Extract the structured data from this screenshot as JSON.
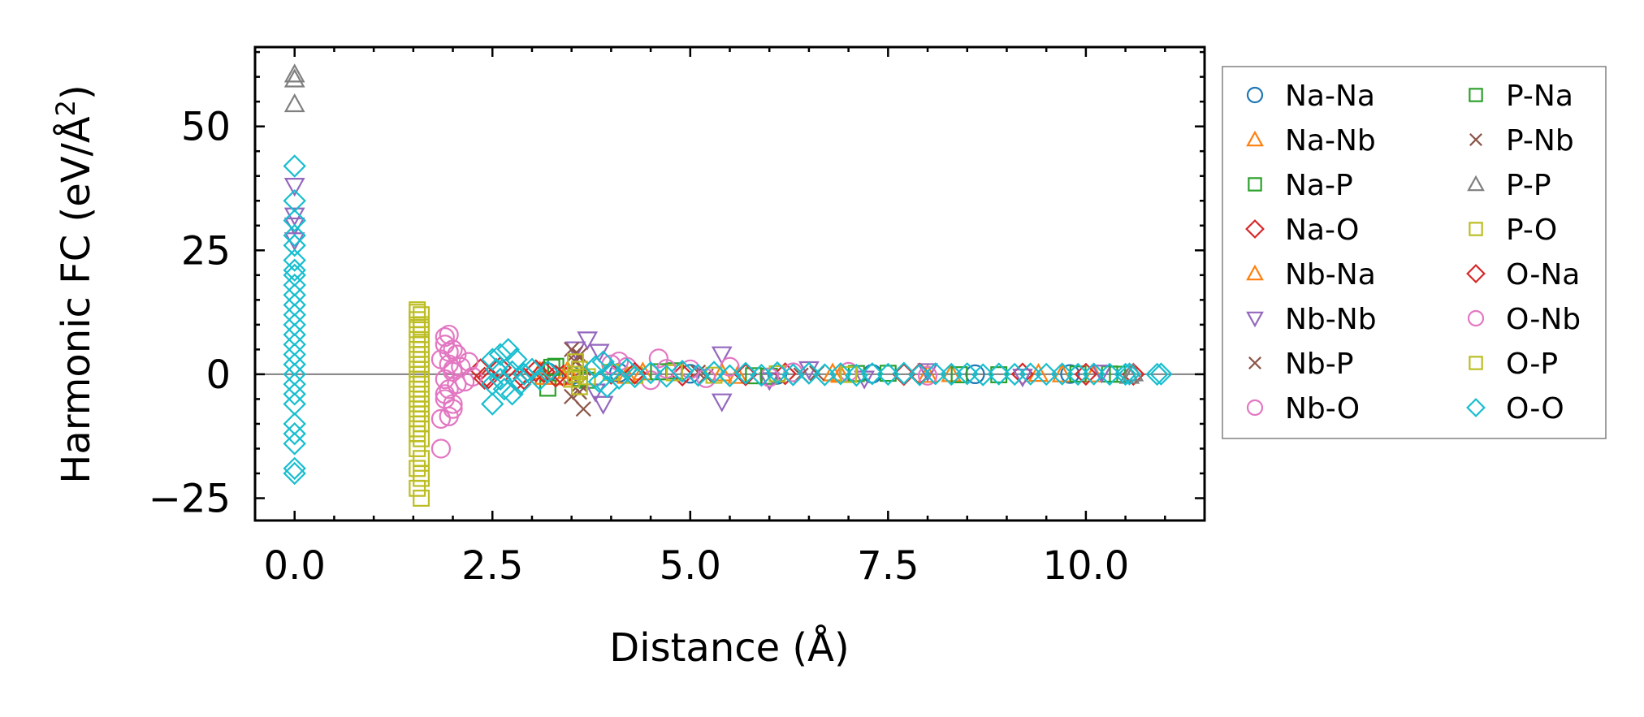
{
  "chart_data": {
    "type": "scatter",
    "title": "",
    "xlabel": "Distance (Å)",
    "ylabel_main": "Harmonic FC (eV/Å",
    "ylabel_sup": "2",
    "ylabel_close": ")",
    "xlim": [
      -0.5,
      11.5
    ],
    "ylim": [
      -29.5,
      66
    ],
    "xticks": [
      0.0,
      2.5,
      5.0,
      7.5,
      10.0
    ],
    "xtick_labels": [
      "0.0",
      "2.5",
      "5.0",
      "7.5",
      "10.0"
    ],
    "yticks": [
      -25,
      0,
      25,
      50
    ],
    "ytick_labels": [
      "−25",
      "0",
      "25",
      "50"
    ],
    "hline_y": 0,
    "legend_position": "outside-right",
    "series": [
      {
        "name": "Na-Na",
        "marker": "circle",
        "color": "#1f77b4",
        "points": [
          [
            3.2,
            0.4
          ],
          [
            3.5,
            -0.2
          ],
          [
            4.1,
            0.3
          ],
          [
            5.0,
            0.1
          ],
          [
            6.1,
            -0.1
          ],
          [
            7.3,
            0.1
          ],
          [
            8.6,
            0.0
          ],
          [
            9.8,
            0.05
          ]
        ]
      },
      {
        "name": "Na-Nb",
        "marker": "triangle-up",
        "color": "#ff7f0e",
        "points": [
          [
            3.1,
            0.6
          ],
          [
            3.4,
            -0.6
          ],
          [
            4.4,
            0.4
          ],
          [
            5.6,
            -0.3
          ],
          [
            6.8,
            0.2
          ],
          [
            8.0,
            -0.1
          ],
          [
            9.4,
            0.1
          ],
          [
            10.1,
            0.0
          ]
        ]
      },
      {
        "name": "Na-P",
        "marker": "square",
        "color": "#2ca02c",
        "points": [
          [
            3.2,
            -2.8
          ],
          [
            3.3,
            1.6
          ],
          [
            3.7,
            -1.2
          ],
          [
            4.8,
            0.7
          ],
          [
            6.0,
            -0.4
          ],
          [
            7.5,
            0.2
          ],
          [
            8.9,
            -0.1
          ],
          [
            10.3,
            0.05
          ]
        ]
      },
      {
        "name": "Na-O",
        "marker": "diamond",
        "color": "#d62728",
        "points": [
          [
            2.35,
            0.9
          ],
          [
            2.45,
            -0.7
          ],
          [
            2.6,
            1.3
          ],
          [
            2.9,
            -0.9
          ],
          [
            3.15,
            0.5
          ],
          [
            3.4,
            -0.3
          ],
          [
            4.0,
            0.2
          ],
          [
            4.9,
            -0.15
          ],
          [
            6.2,
            0.1
          ],
          [
            7.7,
            -0.05
          ],
          [
            9.2,
            0.05
          ],
          [
            10.6,
            0.0
          ]
        ]
      },
      {
        "name": "Nb-Na",
        "marker": "triangle-up",
        "color": "#ff7f0e",
        "points": [
          [
            3.15,
            -0.5
          ],
          [
            3.45,
            0.7
          ],
          [
            4.2,
            -0.3
          ],
          [
            5.4,
            0.2
          ],
          [
            6.9,
            -0.1
          ],
          [
            8.3,
            0.05
          ],
          [
            9.7,
            0.0
          ]
        ]
      },
      {
        "name": "Nb-Nb",
        "marker": "triangle-down",
        "color": "#9467bd",
        "points": [
          [
            0.0,
            38
          ],
          [
            0.0,
            32
          ],
          [
            0.0,
            30
          ],
          [
            0.0,
            27
          ],
          [
            3.55,
            5.0
          ],
          [
            3.7,
            7.0
          ],
          [
            3.85,
            4.5
          ],
          [
            3.8,
            -3.5
          ],
          [
            3.9,
            -6.0
          ],
          [
            5.4,
            4.0
          ],
          [
            5.4,
            -5.5
          ],
          [
            6.0,
            -1.2
          ],
          [
            6.5,
            1.0
          ],
          [
            7.2,
            -0.9
          ],
          [
            8.0,
            0.6
          ],
          [
            9.2,
            -0.5
          ],
          [
            10.2,
            0.3
          ]
        ]
      },
      {
        "name": "Nb-P",
        "marker": "x",
        "color": "#8c564b",
        "points": [
          [
            3.5,
            5.0
          ],
          [
            3.55,
            2.5
          ],
          [
            3.6,
            -2.0
          ],
          [
            3.5,
            -4.5
          ],
          [
            3.65,
            -7.0
          ],
          [
            3.6,
            3.8
          ],
          [
            5.1,
            0.4
          ],
          [
            6.4,
            -0.2
          ]
        ]
      },
      {
        "name": "Nb-O",
        "marker": "circle",
        "color": "#e377c2",
        "points": [
          [
            1.95,
            8
          ],
          [
            1.9,
            6
          ],
          [
            2.0,
            5
          ],
          [
            1.85,
            3
          ],
          [
            2.05,
            4
          ],
          [
            1.95,
            2
          ],
          [
            2.0,
            0.5
          ],
          [
            1.9,
            -1
          ],
          [
            2.05,
            -2
          ],
          [
            1.95,
            -3
          ],
          [
            1.9,
            -5
          ],
          [
            2.0,
            -7
          ],
          [
            1.95,
            -8.5
          ],
          [
            1.85,
            -15
          ],
          [
            2.1,
            1.5
          ],
          [
            2.15,
            -1.5
          ],
          [
            2.2,
            2.5
          ],
          [
            2.25,
            -0.5
          ],
          [
            4.0,
            2.0
          ],
          [
            4.2,
            1.5
          ],
          [
            4.5,
            -1.2
          ],
          [
            4.6,
            3.2
          ],
          [
            5.0,
            1.0
          ],
          [
            5.5,
            1.5
          ],
          [
            6.0,
            -0.6
          ],
          [
            7.0,
            0.5
          ],
          [
            8.0,
            -0.3
          ]
        ]
      },
      {
        "name": "P-Na",
        "marker": "square",
        "color": "#2ca02c",
        "points": [
          [
            3.25,
            1.4
          ],
          [
            3.6,
            -0.8
          ],
          [
            4.6,
            0.5
          ],
          [
            5.8,
            -0.3
          ],
          [
            7.1,
            0.15
          ],
          [
            8.4,
            -0.1
          ],
          [
            9.9,
            0.05
          ],
          [
            10.4,
            0.0
          ]
        ]
      },
      {
        "name": "P-Nb",
        "marker": "x",
        "color": "#8c564b",
        "points": [
          [
            3.55,
            4.2
          ],
          [
            3.6,
            -3.6
          ],
          [
            3.65,
            1.2
          ],
          [
            5.2,
            -0.4
          ],
          [
            6.6,
            0.2
          ]
        ]
      },
      {
        "name": "P-P",
        "marker": "triangle-up",
        "color": "#7f7f7f",
        "points": [
          [
            0.0,
            60.5
          ],
          [
            0.0,
            59.5
          ],
          [
            0.0,
            54.5
          ],
          [
            10.55,
            -0.3
          ],
          [
            10.6,
            0.2
          ]
        ]
      },
      {
        "name": "P-O",
        "marker": "square",
        "color": "#bcbd22",
        "points": [
          [
            1.55,
            13
          ],
          [
            1.6,
            12
          ],
          [
            1.55,
            11
          ],
          [
            1.6,
            10
          ],
          [
            1.55,
            9
          ],
          [
            1.6,
            8
          ],
          [
            1.55,
            7
          ],
          [
            1.6,
            6
          ],
          [
            1.55,
            5
          ],
          [
            1.6,
            4
          ],
          [
            1.55,
            3
          ],
          [
            1.6,
            2
          ],
          [
            1.55,
            1
          ],
          [
            1.6,
            0
          ],
          [
            1.55,
            -1
          ],
          [
            1.6,
            -2
          ],
          [
            1.55,
            -3
          ],
          [
            1.6,
            -4
          ],
          [
            1.55,
            -5
          ],
          [
            1.6,
            -6
          ],
          [
            1.55,
            -7
          ],
          [
            1.6,
            -8
          ],
          [
            1.55,
            -9
          ],
          [
            1.6,
            -10
          ],
          [
            1.55,
            -11
          ],
          [
            1.6,
            -13
          ],
          [
            1.55,
            -15
          ],
          [
            1.6,
            -17
          ],
          [
            1.55,
            -19
          ],
          [
            1.6,
            -21
          ],
          [
            1.55,
            -23
          ],
          [
            1.6,
            -25
          ],
          [
            3.5,
            -1
          ],
          [
            3.55,
            0
          ],
          [
            3.6,
            1
          ],
          [
            3.7,
            -0.5
          ],
          [
            4.0,
            0.4
          ],
          [
            4.3,
            -0.2
          ],
          [
            4.8,
            0.3
          ],
          [
            5.3,
            -0.2
          ],
          [
            6.1,
            0.1
          ],
          [
            7.0,
            -0.05
          ]
        ]
      },
      {
        "name": "O-Na",
        "marker": "diamond",
        "color": "#d62728",
        "points": [
          [
            2.4,
            -0.8
          ],
          [
            2.55,
            1.0
          ],
          [
            2.8,
            -1.1
          ],
          [
            3.05,
            0.7
          ],
          [
            3.3,
            -0.4
          ],
          [
            4.3,
            0.2
          ],
          [
            5.7,
            -0.1
          ],
          [
            7.9,
            0.05
          ],
          [
            10.0,
            0.0
          ]
        ]
      },
      {
        "name": "O-Nb",
        "marker": "circle",
        "color": "#e377c2",
        "points": [
          [
            1.9,
            7.5
          ],
          [
            1.95,
            4.5
          ],
          [
            2.0,
            1.0
          ],
          [
            1.9,
            -4
          ],
          [
            2.0,
            -6
          ],
          [
            1.85,
            -9
          ],
          [
            4.1,
            2.6
          ],
          [
            4.7,
            1.1
          ],
          [
            5.2,
            -0.8
          ],
          [
            6.3,
            0.4
          ]
        ]
      },
      {
        "name": "O-P",
        "marker": "square",
        "color": "#bcbd22",
        "points": [
          [
            1.55,
            12.5
          ],
          [
            1.6,
            9.5
          ],
          [
            1.55,
            -12
          ],
          [
            1.6,
            -20
          ],
          [
            3.55,
            2.5
          ],
          [
            3.6,
            -2.5
          ]
        ]
      },
      {
        "name": "O-O",
        "marker": "diamond",
        "color": "#17becf",
        "points": [
          [
            0.0,
            42
          ],
          [
            0.0,
            35
          ],
          [
            0.0,
            31
          ],
          [
            0.0,
            28
          ],
          [
            0.0,
            26
          ],
          [
            0.0,
            23
          ],
          [
            0.0,
            21
          ],
          [
            0.0,
            20
          ],
          [
            0.0,
            18
          ],
          [
            0.0,
            16
          ],
          [
            0.0,
            14
          ],
          [
            0.0,
            12
          ],
          [
            0.0,
            10
          ],
          [
            0.0,
            8
          ],
          [
            0.0,
            6
          ],
          [
            0.0,
            4
          ],
          [
            0.0,
            2
          ],
          [
            0.0,
            0
          ],
          [
            0.0,
            -2
          ],
          [
            0.0,
            -4
          ],
          [
            0.0,
            -6
          ],
          [
            0.0,
            -10
          ],
          [
            0.0,
            -12
          ],
          [
            0.0,
            -14
          ],
          [
            0.0,
            -19
          ],
          [
            0.0,
            -20
          ],
          [
            2.5,
            3
          ],
          [
            2.5,
            -2
          ],
          [
            2.5,
            -6
          ],
          [
            2.55,
            1
          ],
          [
            2.6,
            4
          ],
          [
            2.65,
            -3
          ],
          [
            2.7,
            5
          ],
          [
            2.75,
            -4
          ],
          [
            2.8,
            3
          ],
          [
            2.85,
            -2
          ],
          [
            2.9,
            0
          ],
          [
            2.75,
            0.5
          ],
          [
            2.6,
            -1
          ],
          [
            3.0,
            1
          ],
          [
            3.1,
            -1
          ],
          [
            3.2,
            0.5
          ],
          [
            3.8,
            1.5
          ],
          [
            3.85,
            -1.5
          ],
          [
            3.9,
            2.5
          ],
          [
            3.95,
            -2.5
          ],
          [
            4.0,
            0.5
          ],
          [
            4.1,
            -0.8
          ],
          [
            4.2,
            1.0
          ],
          [
            4.3,
            -0.5
          ],
          [
            4.5,
            0.3
          ],
          [
            4.7,
            -0.4
          ],
          [
            4.9,
            0.6
          ],
          [
            5.1,
            -0.2
          ],
          [
            5.3,
            0.4
          ],
          [
            5.5,
            -0.3
          ],
          [
            5.7,
            0.2
          ],
          [
            5.9,
            -0.2
          ],
          [
            6.1,
            0.3
          ],
          [
            6.3,
            -0.1
          ],
          [
            6.5,
            0.2
          ],
          [
            6.7,
            -0.1
          ],
          [
            6.9,
            0.1
          ],
          [
            7.1,
            -0.2
          ],
          [
            7.3,
            0.1
          ],
          [
            7.5,
            0.0
          ],
          [
            7.7,
            0.2
          ],
          [
            7.9,
            -0.1
          ],
          [
            8.1,
            0.1
          ],
          [
            8.3,
            0.0
          ],
          [
            8.5,
            0.1
          ],
          [
            8.7,
            -0.1
          ],
          [
            8.9,
            0.05
          ],
          [
            9.1,
            0.0
          ],
          [
            9.3,
            0.05
          ],
          [
            9.5,
            0.0
          ],
          [
            9.7,
            0.05
          ],
          [
            9.9,
            0.0
          ],
          [
            10.1,
            0.05
          ],
          [
            10.3,
            0.0
          ],
          [
            10.5,
            0.0
          ],
          [
            10.55,
            0.05
          ],
          [
            10.9,
            0.0
          ],
          [
            10.95,
            0.05
          ]
        ]
      }
    ]
  }
}
